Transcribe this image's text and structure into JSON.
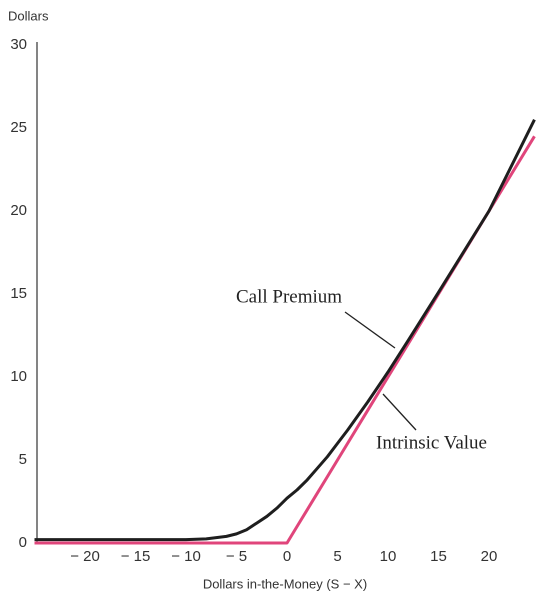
{
  "chart_data": {
    "type": "line",
    "ylabel": "Dollars",
    "xlabel": "Dollars in-the-Money (S − X)",
    "xlim": [
      -25,
      25
    ],
    "ylim": [
      0,
      30
    ],
    "xticks": [
      {
        "value": -20,
        "label": "− 20"
      },
      {
        "value": -15,
        "label": "− 15"
      },
      {
        "value": -10,
        "label": "− 10"
      },
      {
        "value": -5,
        "label": "− 5"
      },
      0,
      5,
      10,
      15,
      20
    ],
    "yticks": [
      0,
      5,
      10,
      15,
      20,
      25,
      30
    ],
    "x": [
      -25,
      -20,
      -15,
      -10,
      -8,
      -6,
      -5,
      -4,
      -3,
      -2,
      -1,
      0,
      1,
      2,
      3,
      4,
      5,
      6,
      8,
      10,
      12,
      15,
      20,
      24.5
    ],
    "series": [
      {
        "name": "Call Premium",
        "color": "#1e1e1e",
        "values": [
          0.2,
          0.2,
          0.2,
          0.2,
          0.25,
          0.4,
          0.55,
          0.8,
          1.2,
          1.6,
          2.1,
          2.7,
          3.2,
          3.8,
          4.5,
          5.2,
          6.0,
          6.8,
          8.5,
          10.3,
          12.2,
          15.1,
          20.0,
          25.5
        ]
      },
      {
        "name": "Intrinsic Value",
        "color": "#e0457b",
        "values": [
          0,
          0,
          0,
          0,
          0,
          0,
          0,
          0,
          0,
          0,
          0,
          0,
          1,
          2,
          3,
          4,
          5,
          6,
          8,
          10,
          12,
          15,
          20,
          24.5
        ]
      }
    ]
  }
}
